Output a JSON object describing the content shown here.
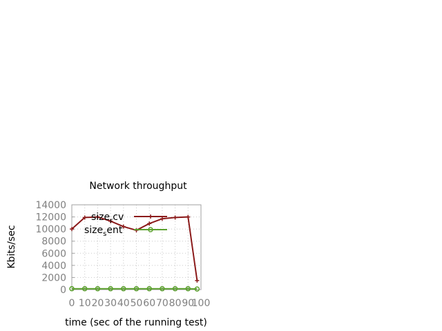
{
  "chart_data": {
    "type": "line",
    "title": "Network throughput",
    "xlabel": "time (sec of the running test)",
    "ylabel": "Kbits/sec",
    "xlim": [
      0,
      100
    ],
    "ylim": [
      0,
      14000
    ],
    "xticks": [
      "0",
      "10",
      "20",
      "30",
      "40",
      "50",
      "60",
      "70",
      "80",
      "90",
      "100"
    ],
    "yticks": [
      "0",
      "2000",
      "4000",
      "6000",
      "8000",
      "10000",
      "12000",
      "14000"
    ],
    "grid": true,
    "legend_position": "top-left",
    "series": [
      {
        "name_main": "size",
        "name_sub": "r",
        "name_rest": "cv",
        "color": "#8b1a1a",
        "marker": "plus",
        "x": [
          0,
          10,
          20,
          30,
          40,
          50,
          60,
          70,
          80,
          90,
          97
        ],
        "y": [
          10000,
          11900,
          12000,
          11300,
          10400,
          9800,
          10900,
          11700,
          11900,
          12000,
          1500
        ]
      },
      {
        "name_main": "size",
        "name_sub": "s",
        "name_rest": "ent",
        "color": "#5aa02c",
        "marker": "circle",
        "x": [
          0,
          10,
          20,
          30,
          40,
          50,
          60,
          70,
          80,
          90,
          97
        ],
        "y": [
          150,
          150,
          150,
          150,
          150,
          150,
          150,
          150,
          150,
          150,
          100
        ]
      }
    ]
  }
}
